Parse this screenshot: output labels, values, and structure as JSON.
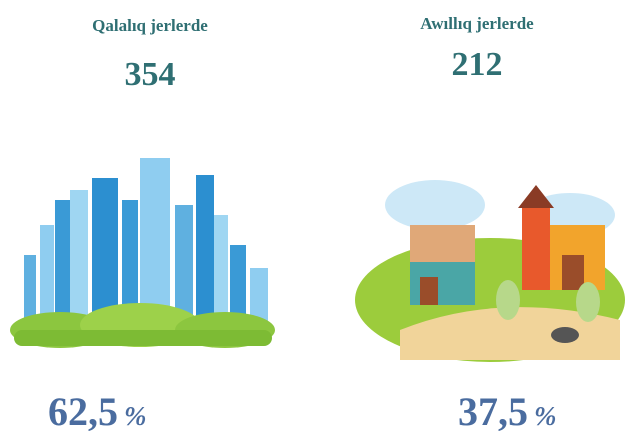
{
  "items": [
    {
      "title": "Qalalıq jerlerde",
      "count": "354",
      "share": "62,5",
      "unit": "%"
    },
    {
      "title": "Awıllıq jerlerde",
      "count": "212",
      "share": "37,5",
      "unit": "%"
    }
  ]
}
